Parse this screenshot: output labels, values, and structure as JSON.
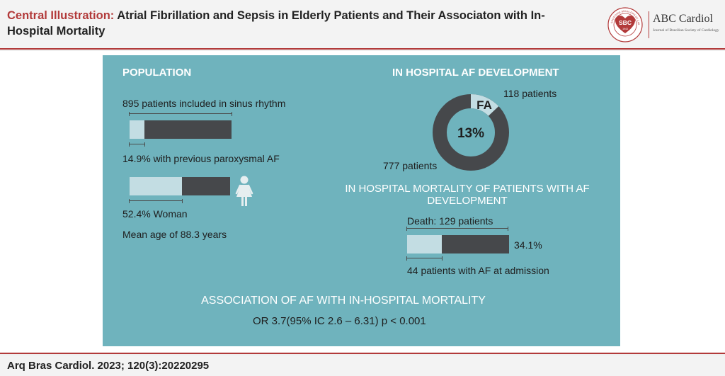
{
  "header": {
    "title_lead": "Central Illustration:",
    "title_rest": " Atrial Fibrillation and Sepsis in Elderly Patients and Their Associaton with In-Hospital Mortality",
    "logo_abbr": "SBC",
    "logo_name": "ABC Cardiol",
    "logo_subtitle": "Journal of Brazilian Society of Cardiology",
    "logo_ring_text": "SOCIEDADE BRASILEIRA DE CARDIOLOGIA",
    "logo_year": "1943"
  },
  "population": {
    "heading": "POPULATION",
    "included_label": "895 patients included in sinus rhythm",
    "paroxysmal_label": "14.9% with previous paroxysmal AF",
    "paroxysmal_fraction": 0.149,
    "woman_label": "52.4% Woman",
    "woman_fraction": 0.524,
    "age_label": "Mean age of 88.3 years",
    "woman_icon": "woman-icon"
  },
  "af_development": {
    "heading": "IN HOSPITAL AF DEVELOPMENT",
    "af_patients_label": "118 patients",
    "no_af_patients_label": "777 patients",
    "center_label": "13%",
    "slice_label": "FA",
    "af_fraction": 0.13
  },
  "mortality": {
    "heading_line1": "IN HOSPITAL MORTALITY OF PATIENTS WITH AF",
    "heading_line2": "DEVELOPMENT",
    "death_label": "Death: 129 patients",
    "percent_label": "34.1%",
    "percent_fraction": 0.341,
    "admission_label": "44 patients with AF at admission"
  },
  "association": {
    "heading": "ASSOCIATION OF AF WITH IN-HOSPITAL MORTALITY",
    "stat": "OR 3.7(95% IC 2.6 – 6.31) p < 0.001"
  },
  "footer": {
    "citation": "Arq Bras Cardiol. 2023; 120(3):20220295"
  },
  "colors": {
    "accent_red": "#b23a3a",
    "panel_teal": "#6fb3bd",
    "bar_light": "#c3dde3",
    "bar_dark": "#46484b"
  },
  "chart_data": [
    {
      "type": "pie",
      "title": "IN HOSPITAL AF DEVELOPMENT",
      "labels": [
        "FA",
        ""
      ],
      "values": [
        118,
        777
      ],
      "annotations": [
        "118 patients",
        "777 patients",
        "13%"
      ]
    }
  ]
}
